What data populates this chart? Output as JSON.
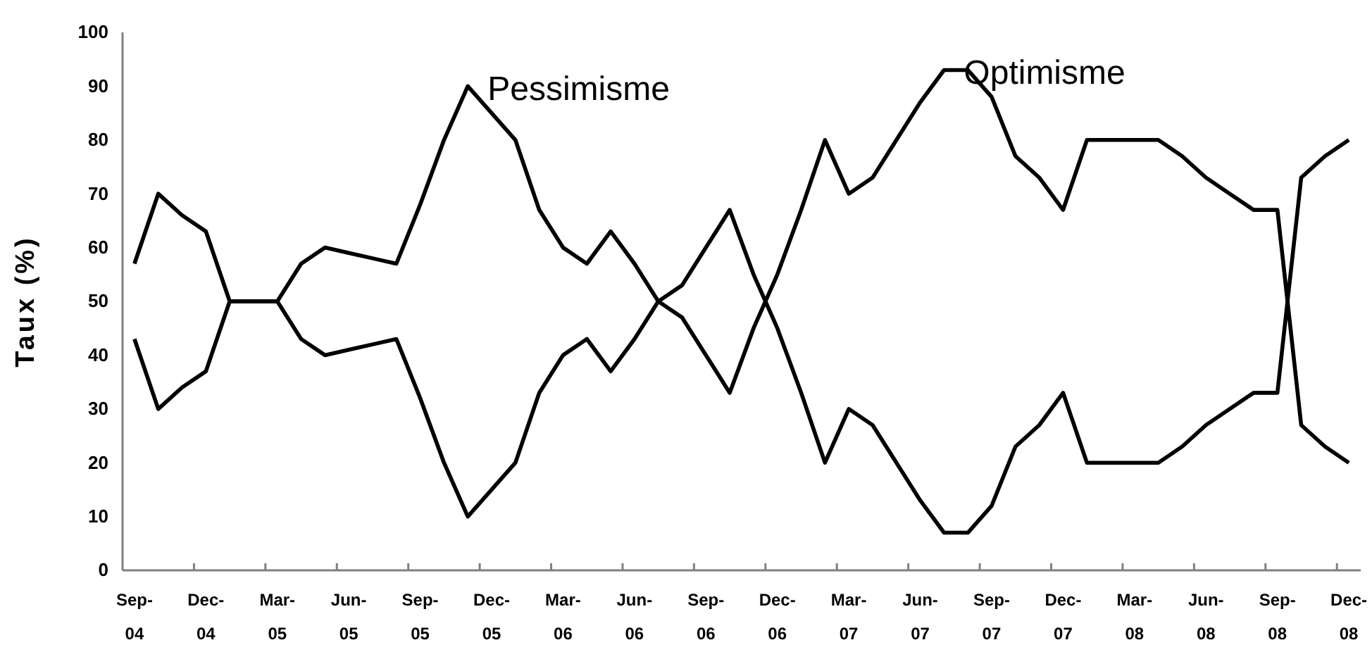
{
  "chart_data": {
    "type": "line",
    "ylabel": "Taux (%)",
    "categories": [
      "Sep-04",
      null,
      null,
      "Dec-04",
      null,
      null,
      "Mar-05",
      null,
      null,
      "Jun-05",
      null,
      null,
      "Sep-05",
      null,
      null,
      "Dec-05",
      null,
      null,
      "Mar-06",
      null,
      null,
      "Jun-06",
      null,
      null,
      "Sep-06",
      null,
      null,
      "Dec-06",
      null,
      null,
      "Mar-07",
      null,
      null,
      "Jun-07",
      null,
      null,
      "Sep-07",
      null,
      null,
      "Dec-07",
      null,
      null,
      "Mar-08",
      null,
      null,
      "Jun-08",
      null,
      null,
      "Sep-08",
      null,
      null,
      "Dec-08"
    ],
    "series": [
      {
        "name": "Pessimisme",
        "color": "#000000",
        "values": [
          57,
          70,
          66,
          63,
          50,
          50,
          50,
          57,
          60,
          59,
          58,
          57,
          68,
          80,
          90,
          85,
          80,
          67,
          60,
          57,
          63,
          57,
          50,
          53,
          60,
          67,
          55,
          45,
          33,
          20,
          30,
          27,
          20,
          13,
          7,
          7,
          12,
          23,
          27,
          33,
          20,
          20,
          20,
          20,
          23,
          27,
          30,
          33,
          33,
          73,
          77,
          80
        ]
      },
      {
        "name": "Optimisme",
        "color": "#000000",
        "values": [
          43,
          30,
          34,
          37,
          50,
          50,
          50,
          43,
          40,
          41,
          42,
          43,
          32,
          20,
          10,
          15,
          20,
          33,
          40,
          43,
          37,
          43,
          50,
          47,
          40,
          33,
          45,
          55,
          67,
          80,
          70,
          73,
          80,
          87,
          93,
          93,
          88,
          77,
          73,
          67,
          80,
          80,
          80,
          80,
          77,
          73,
          70,
          67,
          67,
          27,
          23,
          20
        ]
      }
    ],
    "ylim": [
      0,
      100
    ],
    "yticks": [
      0,
      10,
      20,
      30,
      40,
      50,
      60,
      70,
      80,
      90,
      100
    ],
    "grid": false,
    "legend": false,
    "marker": "none",
    "line_style": "solid"
  }
}
